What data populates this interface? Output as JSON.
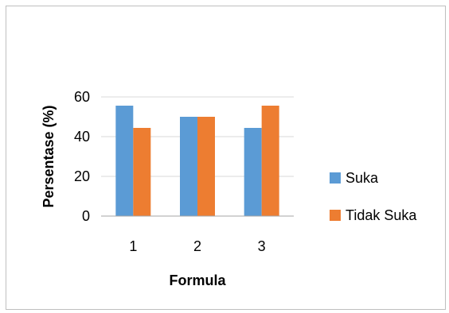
{
  "chart_data": {
    "type": "bar",
    "categories": [
      "1",
      "2",
      "3"
    ],
    "series": [
      {
        "name": "Suka",
        "values": [
          55.6,
          50,
          44.4
        ],
        "color": "#5B9BD5"
      },
      {
        "name": "Tidak Suka",
        "values": [
          44.4,
          50,
          55.6
        ],
        "color": "#ED7D31"
      }
    ],
    "xlabel": "Formula",
    "ylabel": "Persentase (%)",
    "ylim": [
      0,
      60
    ],
    "yticks": [
      "0",
      "20",
      "40",
      "60"
    ],
    "grid": true,
    "legend_position": "right"
  }
}
